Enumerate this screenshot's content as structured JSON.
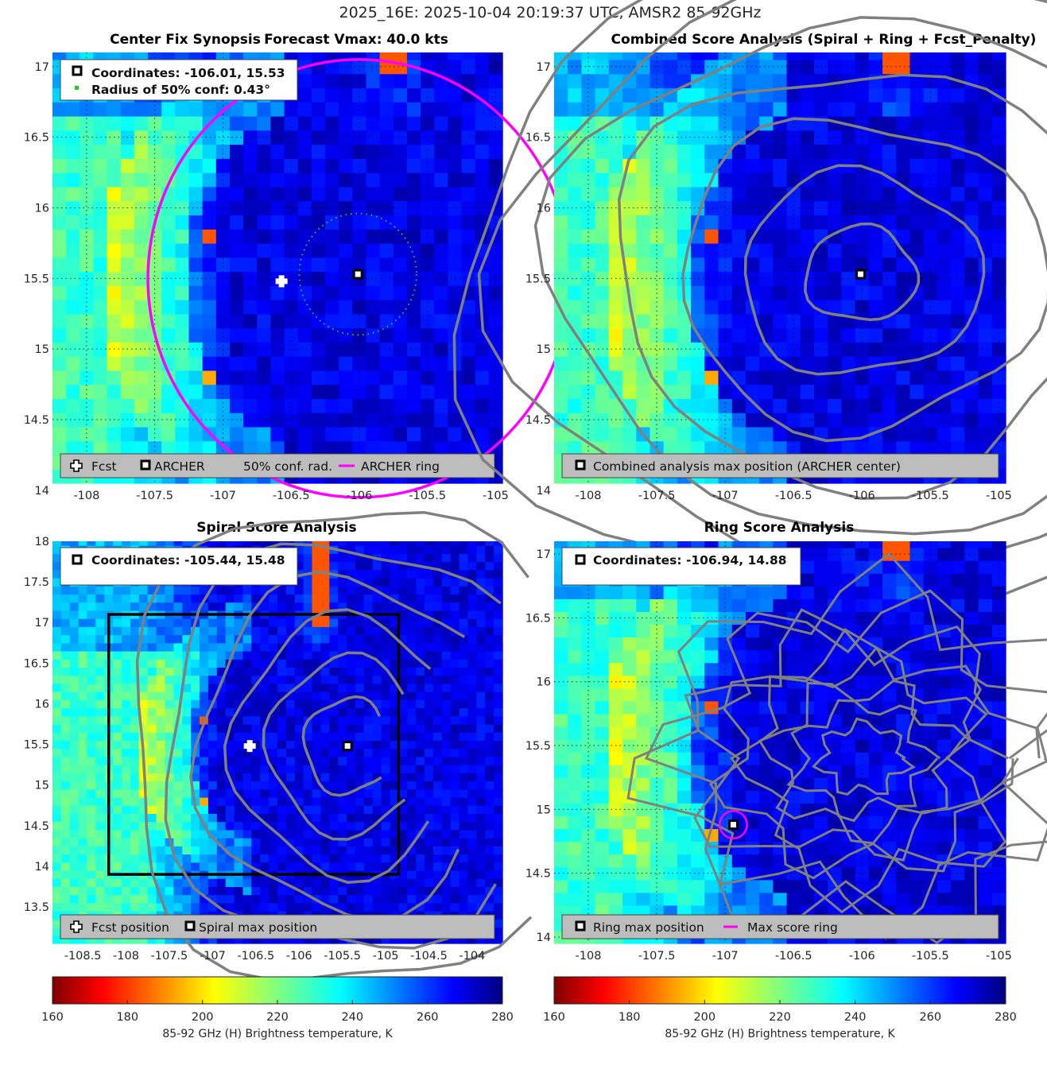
{
  "suptitle": "2025_16E: 2025-10-04 20:19:37 UTC, AMSR2 85-92GHz",
  "colors": {
    "ring": "#ff00ff",
    "contour": "#808080",
    "conf_dots": "#22cc22",
    "legend_bg": "#bdbdbd"
  },
  "panels": [
    {
      "id": "synopsis",
      "title": "Center Fix Synopsis",
      "title_extra": "Forecast Vmax: 40.0 kts",
      "info_lines": [
        "Coordinates: -106.01, 15.53",
        "Radius of 50% conf: 0.43°"
      ],
      "legend": [
        "Fcst",
        "ARCHER",
        "50% conf. rad.",
        "ARCHER ring"
      ]
    },
    {
      "id": "combined",
      "title": "Combined Score Analysis (Spiral + Ring + Fcst_Penalty)",
      "legend": [
        "Combined analysis max position (ARCHER center)"
      ]
    },
    {
      "id": "spiral",
      "title": "Spiral Score Analysis",
      "info_lines": [
        "Coordinates: -105.44, 15.48"
      ],
      "legend": [
        "Fcst position",
        "Spiral max position"
      ]
    },
    {
      "id": "ring",
      "title": "Ring Score Analysis",
      "info_lines": [
        "Coordinates: -106.94, 14.88"
      ],
      "legend": [
        "Ring max position",
        "Max score ring"
      ]
    }
  ],
  "colorbar": {
    "label": "85-92 GHz (H) Brightness temperature, K",
    "ticks": [
      "160",
      "180",
      "200",
      "220",
      "240",
      "260",
      "280"
    ],
    "range": [
      160,
      280
    ]
  },
  "chart_data": [
    {
      "type": "heatmap",
      "title": "Center Fix Synopsis",
      "xlim": [
        -108.25,
        -104.95
      ],
      "ylim": [
        14.05,
        17.1
      ],
      "xticks": [
        "-108",
        "-107.5",
        "-107",
        "-106.5",
        "-106",
        "-105.5",
        "-105"
      ],
      "yticks": [
        "14",
        "14.5",
        "15",
        "15.5",
        "16",
        "16.5",
        "17"
      ],
      "grid": true,
      "fcst_position": [
        -106.57,
        15.48
      ],
      "archer_center": [
        -106.01,
        15.53
      ],
      "conf_radius_deg": 0.43,
      "archer_ring": {
        "center": [
          -106.0,
          15.5
        ],
        "radius_deg": 1.55
      }
    },
    {
      "type": "heatmap",
      "title": "Combined Score Analysis (Spiral + Ring + Fcst_Penalty)",
      "xlim": [
        -108.25,
        -104.95
      ],
      "ylim": [
        14.05,
        17.1
      ],
      "xticks": [
        "-108",
        "-107.5",
        "-107",
        "-106.5",
        "-106",
        "-105.5",
        "-105"
      ],
      "yticks": [
        "14",
        "14.5",
        "15",
        "15.5",
        "16",
        "16.5",
        "17"
      ],
      "grid": true,
      "max_position": [
        -106.01,
        15.53
      ],
      "contours": "concentric around max position"
    },
    {
      "type": "heatmap",
      "title": "Spiral Score Analysis",
      "xlim": [
        -108.85,
        -103.65
      ],
      "ylim": [
        13.05,
        18.0
      ],
      "xticks": [
        "-108.5",
        "-108",
        "-107.5",
        "-107",
        "-106.5",
        "-106",
        "-105.5",
        "-105",
        "-104.5",
        "-104"
      ],
      "yticks": [
        "13.5",
        "14",
        "14.5",
        "15",
        "15.5",
        "16",
        "16.5",
        "17",
        "17.5",
        "18"
      ],
      "grid": false,
      "fcst_position": [
        -106.57,
        15.48
      ],
      "spiral_max_position": [
        -105.44,
        15.48
      ],
      "search_box": {
        "x": [
          -108.2,
          -104.85
        ],
        "y": [
          13.9,
          17.1
        ]
      }
    },
    {
      "type": "heatmap",
      "title": "Ring Score Analysis",
      "xlim": [
        -108.25,
        -104.95
      ],
      "ylim": [
        13.95,
        17.1
      ],
      "xticks": [
        "-108",
        "-107.5",
        "-107",
        "-106.5",
        "-106",
        "-105.5",
        "-105"
      ],
      "yticks": [
        "14",
        "14.5",
        "15",
        "15.5",
        "16",
        "16.5",
        "17"
      ],
      "grid": true,
      "ring_max_position": [
        -106.94,
        14.88
      ],
      "max_score_ring_radius_deg": 0.1
    }
  ]
}
